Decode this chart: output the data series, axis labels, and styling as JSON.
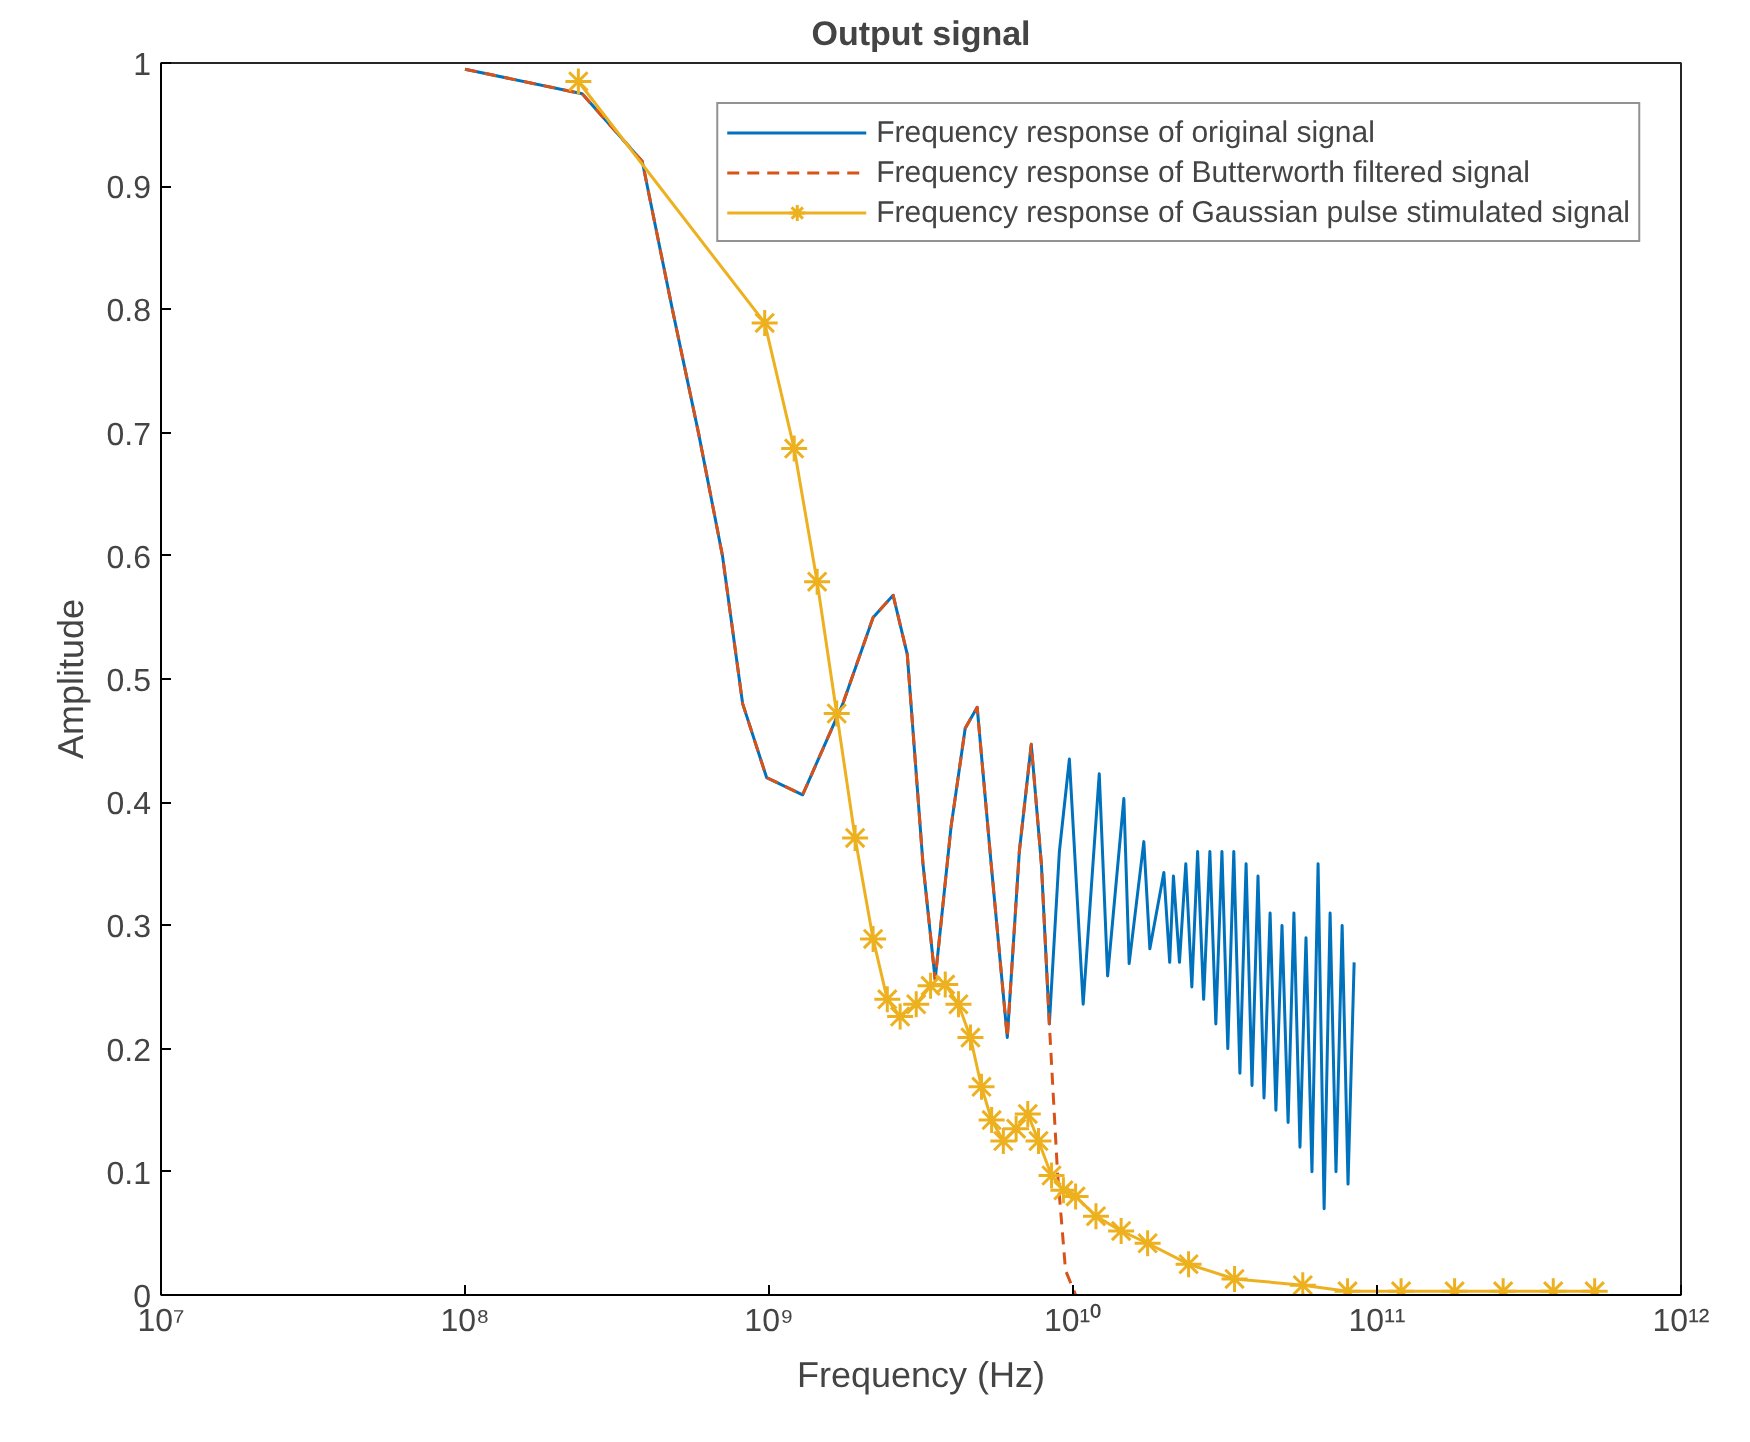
{
  "chart_data": {
    "type": "line",
    "title": "Output signal",
    "xlabel": "Frequency (Hz)",
    "ylabel": "Amplitude",
    "log": "x",
    "grid": false,
    "legend": "top right",
    "xlim": [
      10000000.0,
      1000000000000.0
    ],
    "xticks": [
      {
        "value": 10000000.0,
        "label": "10⁷"
      },
      {
        "value": 100000000.0,
        "label": "10⁸"
      },
      {
        "value": 1000000000.0,
        "label": "10⁹"
      },
      {
        "value": 10000000000.0,
        "label": "10¹⁰"
      },
      {
        "value": 100000000000.0,
        "label": "10¹¹"
      },
      {
        "value": 1000000000000.0,
        "label": "10¹²"
      }
    ],
    "ylim": [
      0,
      1
    ],
    "yticks": [
      0,
      {
        "value": 0.1,
        "label": "0.1"
      },
      {
        "value": 0.2,
        "label": "0.2"
      },
      {
        "value": 0.3,
        "label": "0.3"
      },
      {
        "value": 0.4,
        "label": "0.4"
      },
      {
        "value": 0.5,
        "label": "0.5"
      },
      {
        "value": 0.6,
        "label": "0.6"
      },
      {
        "value": 0.7,
        "label": "0.7"
      },
      {
        "value": 0.8,
        "label": "0.8"
      },
      {
        "value": 0.9,
        "label": "0.9"
      },
      1
    ],
    "series": [
      {
        "name": "Frequency response of original signal",
        "color": "#0072bd",
        "line_style": "solid",
        "marker": "none",
        "x": [
          100000000.0,
          243000000.0,
          383000000.0,
          481000000.0,
          586000000.0,
          703000000.0,
          819000000.0,
          982000000.0,
          1290000000.0,
          1750000000.0,
          2200000000.0,
          2560000000.0,
          2850000000.0,
          3210000000.0,
          3520000000.0,
          3970000000.0,
          4420000000.0,
          4840000000.0,
          5380000000.0,
          6080000000.0,
          6660000000.0,
          7290000000.0,
          7870000000.0,
          8360000000.0,
          9020000000.0,
          9730000000.0,
          10800000000.0,
          12200000000.0,
          13000000000.0,
          14700000000.0,
          15300000000.0,
          17100000000.0,
          17900000000.0,
          19900000000.0,
          20800000000.0,
          21400000000.0,
          22400000000.0,
          23500000000.0,
          24600000000.0,
          25700000000.0,
          26900000000.0,
          28200000000.0,
          29500000000.0,
          30900000000.0,
          32300000000.0,
          33800000000.0,
          35400000000.0,
          37100000000.0,
          38800000000.0,
          40600000000.0,
          42500000000.0,
          44500000000.0,
          46500000000.0,
          48700000000.0,
          51000000000.0,
          53300000000.0,
          55800000000.0,
          58400000000.0,
          61100000000.0,
          64000000000.0,
          67000000000.0,
          70100000000.0,
          73300000000.0,
          76800000000.0,
          80300000000.0,
          84100000000.0
        ],
        "values": [
          0.995,
          0.975,
          0.92,
          0.8,
          0.7,
          0.6,
          0.48,
          0.42,
          0.406,
          0.48,
          0.55,
          0.568,
          0.52,
          0.35,
          0.256,
          0.38,
          0.46,
          0.477,
          0.35,
          0.209,
          0.36,
          0.447,
          0.35,
          0.22,
          0.36,
          0.435,
          0.236,
          0.423,
          0.259,
          0.403,
          0.269,
          0.368,
          0.281,
          0.343,
          0.27,
          0.34,
          0.27,
          0.35,
          0.25,
          0.36,
          0.24,
          0.36,
          0.22,
          0.36,
          0.2,
          0.36,
          0.18,
          0.35,
          0.17,
          0.34,
          0.16,
          0.31,
          0.15,
          0.3,
          0.14,
          0.31,
          0.12,
          0.29,
          0.1,
          0.35,
          0.07,
          0.31,
          0.1,
          0.3,
          0.09,
          0.27
        ]
      },
      {
        "name": "Frequency response of Butterworth filtered signal",
        "color": "#d95319",
        "line_style": "dashed",
        "marker": "none",
        "x": [
          100000000.0,
          243000000.0,
          383000000.0,
          481000000.0,
          586000000.0,
          703000000.0,
          819000000.0,
          982000000.0,
          1290000000.0,
          1750000000.0,
          2200000000.0,
          2560000000.0,
          2850000000.0,
          3210000000.0,
          3520000000.0,
          3970000000.0,
          4420000000.0,
          4840000000.0,
          5380000000.0,
          6080000000.0,
          6660000000.0,
          7290000000.0,
          7870000000.0,
          8360000000.0,
          8890000000.0,
          9450000000.0,
          10200000000.0
        ],
        "values": [
          0.995,
          0.975,
          0.92,
          0.8,
          0.7,
          0.6,
          0.48,
          0.42,
          0.406,
          0.48,
          0.55,
          0.568,
          0.52,
          0.35,
          0.256,
          0.38,
          0.46,
          0.477,
          0.35,
          0.209,
          0.36,
          0.447,
          0.35,
          0.22,
          0.1,
          0.02,
          0
        ]
      },
      {
        "name": "Frequency response of Gaussian pulse stimulated signal",
        "color": "#edb120",
        "line_style": "solid",
        "marker": "cross",
        "x": [
          236000000.0,
          968000000.0,
          1210000000.0,
          1440000000.0,
          1670000000.0,
          1920000000.0,
          2200000000.0,
          2450000000.0,
          2700000000.0,
          3050000000.0,
          3400000000.0,
          3800000000.0,
          4200000000.0,
          4600000000.0,
          5000000000.0,
          5400000000.0,
          5900000000.0,
          6500000000.0,
          7100000000.0,
          7700000000.0,
          8500000000.0,
          9300000000.0,
          10200000000.0,
          11900000000.0,
          14400000000.0,
          17600000000.0,
          24000000000.0,
          34000000000.0,
          57000000000.0,
          80000000000.0,
          120000000000.0,
          180000000000.0,
          260000000000.0,
          380000000000.0,
          520000000000.0
        ],
        "values": [
          0.985,
          0.789,
          0.687,
          0.579,
          0.472,
          0.371,
          0.289,
          0.24,
          0.226,
          0.236,
          0.251,
          0.252,
          0.236,
          0.209,
          0.169,
          0.142,
          0.125,
          0.135,
          0.147,
          0.125,
          0.097,
          0.085,
          0.08,
          0.064,
          0.052,
          0.042,
          0.025,
          0.013,
          0.008,
          0.003,
          0.003,
          0.003,
          0.003,
          0.003,
          0.003
        ]
      }
    ]
  }
}
